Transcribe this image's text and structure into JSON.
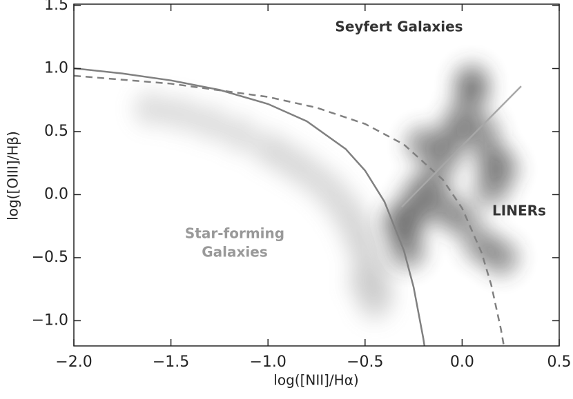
{
  "chart_data": {
    "type": "scatter",
    "xlabel": "log([NII]/Hα)",
    "ylabel": "log([OIII]/Hβ)",
    "annotations": [
      "Seyfert Galaxies",
      "LINERs",
      "Star-forming",
      "Galaxies"
    ],
    "xlim": [
      -2.0,
      0.5
    ],
    "ylim": [
      -1.2,
      1.5
    ],
    "xticks": [
      {
        "value": -2.0,
        "label": "−2.0"
      },
      {
        "value": -1.5,
        "label": "−1.5"
      },
      {
        "value": -1.0,
        "label": "−1.0"
      },
      {
        "value": -0.5,
        "label": "−0.5"
      },
      {
        "value": 0.0,
        "label": "0.0"
      },
      0.5
    ],
    "yticks": [
      {
        "value": -1.0,
        "label": "−1.0"
      },
      {
        "value": -0.5,
        "label": "−0.5"
      },
      {
        "value": 0.0,
        "label": "0.0"
      },
      0.5,
      {
        "value": 1.0,
        "label": "1.0"
      },
      1.5
    ],
    "series": [
      {
        "color": "#bdbdbd",
        "x": [
          -1.6,
          -1.45,
          -1.3,
          -1.15,
          -1.0,
          -0.9,
          -0.8,
          -0.7,
          -0.62,
          -0.56,
          -0.52,
          -0.49,
          -0.46,
          -0.44,
          -0.45,
          -0.5
        ],
        "y": [
          0.68,
          0.64,
          0.57,
          0.48,
          0.37,
          0.28,
          0.18,
          0.06,
          -0.08,
          -0.22,
          -0.36,
          -0.5,
          -0.64,
          -0.76,
          -0.86,
          -0.7
        ]
      },
      {
        "color": "#3a3a3a",
        "x": [
          -0.3,
          -0.28,
          -0.25,
          -0.32,
          -0.22,
          -0.15,
          -0.1,
          -0.05,
          0.0,
          0.05,
          0.1,
          0.15,
          0.2,
          -0.1,
          0.0,
          0.1,
          0.2,
          0.05,
          0.15,
          -0.2
        ],
        "y": [
          -0.3,
          -0.45,
          -0.15,
          -0.2,
          0.0,
          0.1,
          0.3,
          0.45,
          0.6,
          0.8,
          0.5,
          0.3,
          0.2,
          -0.1,
          -0.2,
          -0.4,
          -0.5,
          0.9,
          0.05,
          0.4
        ]
      },
      {
        "type": "line",
        "style": "solid",
        "color": "#808080",
        "x": [
          -2.0,
          -1.75,
          -1.5,
          -1.25,
          -1.0,
          -0.8,
          -0.6,
          -0.5,
          -0.4,
          -0.3,
          -0.25,
          -0.2,
          -0.194
        ],
        "y": [
          1.002,
          0.961,
          0.906,
          0.831,
          0.719,
          0.582,
          0.362,
          0.191,
          -0.056,
          -0.443,
          -0.733,
          -1.14,
          -1.2
        ]
      },
      {
        "type": "line",
        "style": "dashed",
        "color": "#808080",
        "x": [
          -2.0,
          -1.5,
          -1.0,
          -0.75,
          -0.5,
          -0.3,
          -0.1,
          0.0,
          0.1,
          0.15,
          0.2,
          0.215
        ],
        "y": [
          0.943,
          0.88,
          0.775,
          0.69,
          0.561,
          0.398,
          0.12,
          -0.108,
          -0.459,
          -0.716,
          -1.069,
          -1.2
        ]
      },
      {
        "type": "line",
        "style": "solid",
        "color": "#a8a8a8",
        "x": [
          -0.311,
          0.304
        ],
        "y": [
          -0.097,
          0.86
        ]
      }
    ]
  }
}
